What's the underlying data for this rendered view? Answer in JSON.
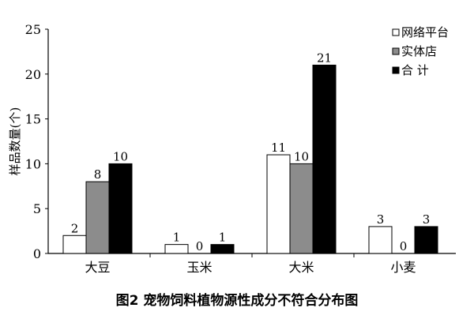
{
  "caption": "图2  宠物饲料植物源性成分不符合分布图",
  "chart_data": {
    "type": "bar",
    "title": "",
    "xlabel": "",
    "ylabel": "样品数量(个)",
    "ylim": [
      0,
      25
    ],
    "yticks": [
      0,
      5,
      10,
      15,
      20,
      25
    ],
    "grid": false,
    "legend_position": "top-right",
    "categories": [
      "大豆",
      "玉米",
      "大米",
      "小麦"
    ],
    "series": [
      {
        "name": "网络平台",
        "values": [
          2,
          1,
          11,
          3
        ],
        "color": "#ffffff"
      },
      {
        "name": "实体店",
        "values": [
          8,
          0,
          10,
          0
        ],
        "color": "#8c8c8c"
      },
      {
        "name": "合 计",
        "values": [
          10,
          1,
          21,
          3
        ],
        "color": "#000000"
      }
    ]
  }
}
